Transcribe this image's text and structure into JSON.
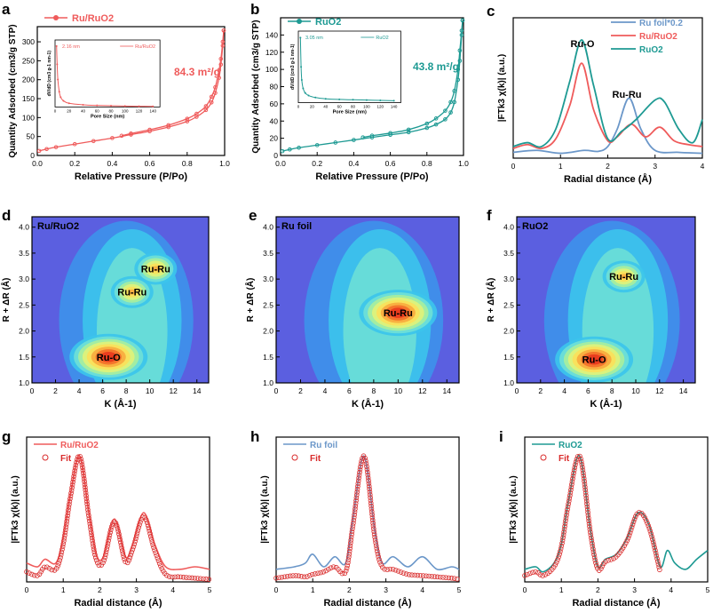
{
  "colors": {
    "red": "#ef5b5b",
    "teal": "#1e9a93",
    "blue": "#6b97c9",
    "fitred": "#d92b2b",
    "axis": "#000000"
  },
  "chart_data": [
    {
      "panel": "a",
      "type": "line",
      "title": "",
      "xlabel": "Relative Pressure (P/Po)",
      "ylabel": "Quantity Adsorbed (cm3/g STP)",
      "xlim": [
        0,
        1.0
      ],
      "ylim": [
        0,
        340
      ],
      "xticks": [
        "0.0",
        "0.2",
        "0.4",
        "0.6",
        "0.8",
        "1.0"
      ],
      "yticks": [
        "0",
        "50",
        "100",
        "150",
        "200",
        "250",
        "300"
      ],
      "legend": [
        "Ru/RuO2"
      ],
      "annotation": "84.3 m²/g",
      "series": [
        {
          "name": "adsorption",
          "x": [
            0.01,
            0.05,
            0.1,
            0.2,
            0.3,
            0.4,
            0.5,
            0.6,
            0.7,
            0.8,
            0.85,
            0.9,
            0.93,
            0.95,
            0.97,
            0.98,
            0.99,
            0.995
          ],
          "y": [
            12,
            17,
            22,
            30,
            38,
            46,
            55,
            64,
            75,
            90,
            102,
            120,
            140,
            165,
            205,
            240,
            290,
            330
          ]
        },
        {
          "name": "desorption",
          "x": [
            0.995,
            0.99,
            0.98,
            0.97,
            0.95,
            0.93,
            0.9,
            0.85,
            0.8,
            0.7,
            0.6,
            0.5,
            0.45
          ],
          "y": [
            330,
            300,
            255,
            225,
            180,
            155,
            130,
            110,
            97,
            80,
            68,
            58,
            52
          ]
        }
      ],
      "inset": {
        "xlabel": "Pore Size (nm)",
        "ylabel": "dV/dD (cm3 g-1 nm-1)",
        "xlim": [
          0,
          150
        ],
        "xticks": [
          "0",
          "20",
          "40",
          "60",
          "80",
          "100",
          "120",
          "140"
        ],
        "legend": "Ru/RuO2",
        "annotation": "2.16 nm",
        "x": [
          2.16,
          3,
          4,
          6,
          8,
          12,
          20,
          40,
          60,
          80,
          100,
          120,
          140
        ],
        "y": [
          1.0,
          0.7,
          0.45,
          0.25,
          0.16,
          0.1,
          0.06,
          0.035,
          0.025,
          0.02,
          0.015,
          0.012,
          0.01
        ]
      }
    },
    {
      "panel": "b",
      "type": "line",
      "title": "",
      "xlabel": "Relative Pressure (P/Po)",
      "ylabel": "Quantity Adsorbed (cm3/g STP)",
      "xlim": [
        0,
        1.0
      ],
      "ylim": [
        0,
        160
      ],
      "xticks": [
        "0.0",
        "0.2",
        "0.4",
        "0.6",
        "0.8",
        "1.0"
      ],
      "yticks": [
        "0",
        "20",
        "40",
        "60",
        "80",
        "100",
        "120",
        "140"
      ],
      "legend": [
        "RuO2"
      ],
      "annotation": "43.8 m²/g",
      "series": [
        {
          "name": "adsorption",
          "x": [
            0.01,
            0.05,
            0.1,
            0.2,
            0.3,
            0.4,
            0.5,
            0.6,
            0.7,
            0.8,
            0.85,
            0.9,
            0.93,
            0.95,
            0.97,
            0.98,
            0.99,
            0.995
          ],
          "y": [
            5,
            7,
            9,
            12,
            15,
            18,
            21,
            24,
            27,
            32,
            36,
            42,
            50,
            62,
            88,
            110,
            140,
            157
          ]
        },
        {
          "name": "desorption",
          "x": [
            0.995,
            0.99,
            0.98,
            0.97,
            0.95,
            0.93,
            0.9,
            0.85,
            0.8,
            0.7,
            0.6,
            0.5,
            0.45
          ],
          "y": [
            157,
            145,
            122,
            100,
            75,
            62,
            52,
            43,
            37,
            30,
            26,
            23,
            21
          ]
        }
      ],
      "inset": {
        "xlabel": "Pore Size (nm)",
        "ylabel": "dV/dD (cm3 g-1 nm-1)",
        "xlim": [
          0,
          150
        ],
        "xticks": [
          "0",
          "20",
          "40",
          "60",
          "80",
          "100",
          "120",
          "140"
        ],
        "legend": "RuO2",
        "annotation": "3.05 nm",
        "x": [
          3.05,
          4,
          5,
          7,
          10,
          15,
          25,
          40,
          60,
          80,
          100,
          120,
          140
        ],
        "y": [
          1.0,
          0.55,
          0.35,
          0.22,
          0.15,
          0.11,
          0.08,
          0.06,
          0.05,
          0.045,
          0.04,
          0.035,
          0.03
        ]
      }
    },
    {
      "panel": "c",
      "type": "line",
      "title": "",
      "xlabel": "Radial distance (Å)",
      "ylabel": "|FTk3 χ(k)| (a.u.)",
      "xlim": [
        0,
        4
      ],
      "xticks": [
        "0",
        "1",
        "2",
        "3",
        "4"
      ],
      "legend": [
        "Ru foil*0.2",
        "Ru/RuO2",
        "RuO2"
      ],
      "annotations": [
        "Ru-O",
        "Ru-Ru"
      ],
      "series": [
        {
          "name": "Ru foil*0.2",
          "color": "blue",
          "x": [
            0,
            0.5,
            1,
            1.5,
            1.8,
            2.0,
            2.2,
            2.45,
            2.7,
            3,
            3.5,
            4
          ],
          "y": [
            0.06,
            0.08,
            0.05,
            0.08,
            0.07,
            0.12,
            0.3,
            0.62,
            0.3,
            0.08,
            0.06,
            0.05
          ]
        },
        {
          "name": "Ru/RuO2",
          "color": "red",
          "x": [
            0,
            0.3,
            0.6,
            0.9,
            1.2,
            1.45,
            1.7,
            2.0,
            2.2,
            2.5,
            2.8,
            3.1,
            3.4,
            3.7,
            4
          ],
          "y": [
            0.1,
            0.14,
            0.1,
            0.2,
            0.55,
            0.98,
            0.5,
            0.18,
            0.22,
            0.35,
            0.22,
            0.32,
            0.18,
            0.14,
            0.12
          ]
        },
        {
          "name": "RuO2",
          "color": "teal",
          "x": [
            0,
            0.3,
            0.6,
            0.9,
            1.2,
            1.45,
            1.7,
            2.0,
            2.3,
            2.6,
            3.0,
            3.2,
            3.5,
            3.8,
            4
          ],
          "y": [
            0.12,
            0.16,
            0.12,
            0.3,
            0.8,
            1.22,
            0.75,
            0.2,
            0.28,
            0.4,
            0.6,
            0.58,
            0.3,
            0.16,
            0.4
          ]
        }
      ]
    },
    {
      "panel": "d",
      "type": "heatmap",
      "label": "Ru/RuO2",
      "xlabel": "K (Å-1)",
      "ylabel": "R + ΔR (Å)",
      "xlim": [
        0,
        15
      ],
      "ylim": [
        1.0,
        4.2
      ],
      "xticks": [
        "0",
        "2",
        "4",
        "6",
        "8",
        "10",
        "12",
        "14"
      ],
      "yticks": [
        "1.0",
        "1.5",
        "2.0",
        "2.5",
        "3.0",
        "3.5",
        "4.0"
      ],
      "peaks": [
        {
          "label": "Ru-O",
          "k": 6.5,
          "r": 1.5
        },
        {
          "label": "Ru-Ru",
          "k": 8.5,
          "r": 2.75
        },
        {
          "label": "Ru-Ru",
          "k": 10.5,
          "r": 3.2
        }
      ]
    },
    {
      "panel": "e",
      "type": "heatmap",
      "label": "Ru foil",
      "xlabel": "K (Å-1)",
      "ylabel": "R + ΔR (Å)",
      "xlim": [
        0,
        15
      ],
      "ylim": [
        1.0,
        4.2
      ],
      "xticks": [
        "0",
        "2",
        "4",
        "6",
        "8",
        "10",
        "12",
        "14"
      ],
      "yticks": [
        "1.0",
        "1.5",
        "2.0",
        "2.5",
        "3.0",
        "3.5",
        "4.0"
      ],
      "peaks": [
        {
          "label": "Ru-Ru",
          "k": 10.0,
          "r": 2.35
        }
      ]
    },
    {
      "panel": "f",
      "type": "heatmap",
      "label": "RuO2",
      "xlabel": "K (Å-1)",
      "ylabel": "R + ΔR (Å)",
      "xlim": [
        0,
        15
      ],
      "ylim": [
        1.0,
        4.2
      ],
      "xticks": [
        "0",
        "2",
        "4",
        "6",
        "8",
        "10",
        "12",
        "14"
      ],
      "yticks": [
        "1.0",
        "1.5",
        "2.0",
        "2.5",
        "3.0",
        "3.5",
        "4.0"
      ],
      "peaks": [
        {
          "label": "Ru-O",
          "k": 6.5,
          "r": 1.45
        },
        {
          "label": "Ru-Ru",
          "k": 9.0,
          "r": 3.05
        }
      ]
    },
    {
      "panel": "g",
      "type": "line",
      "xlabel": "Radial distance (Å)",
      "ylabel": "|FTk3 χ(k)| (a.u.)",
      "xlim": [
        0,
        5
      ],
      "xticks": [
        "0",
        "1",
        "2",
        "3",
        "4",
        "5"
      ],
      "legend": [
        "Ru/RuO2",
        "Fit"
      ],
      "series": [
        {
          "name": "Ru/RuO2",
          "color": "red",
          "x": [
            0,
            0.3,
            0.5,
            0.8,
            1.0,
            1.2,
            1.45,
            1.7,
            1.9,
            2.1,
            2.4,
            2.7,
            2.9,
            3.2,
            3.5,
            3.8,
            4.2,
            4.6,
            5
          ],
          "y": [
            0.15,
            0.12,
            0.18,
            0.15,
            0.35,
            0.7,
            1.0,
            0.55,
            0.22,
            0.2,
            0.5,
            0.2,
            0.3,
            0.55,
            0.3,
            0.12,
            0.1,
            0.12,
            0.1
          ]
        },
        {
          "name": "Fit",
          "color": "fitred",
          "x": [
            0,
            0.3,
            0.5,
            0.8,
            1.0,
            1.2,
            1.45,
            1.7,
            1.9,
            2.1,
            2.4,
            2.7,
            2.9,
            3.2,
            3.5,
            3.8,
            4.2,
            4.6,
            5
          ],
          "y": [
            0.08,
            0.05,
            0.12,
            0.1,
            0.3,
            0.68,
            1.0,
            0.52,
            0.18,
            0.16,
            0.48,
            0.16,
            0.26,
            0.52,
            0.25,
            0.06,
            0.04,
            0.03,
            0.02
          ]
        }
      ]
    },
    {
      "panel": "h",
      "type": "line",
      "xlabel": "Radial distance (Å)",
      "ylabel": "|FTk3 χ(k)| (a.u.)",
      "xlim": [
        0,
        5
      ],
      "xticks": [
        "0",
        "1",
        "2",
        "3",
        "4",
        "5"
      ],
      "legend": [
        "Ru foil",
        "Fit"
      ],
      "series": [
        {
          "name": "Ru foil",
          "color": "blue",
          "x": [
            0,
            0.5,
            0.8,
            1.0,
            1.3,
            1.6,
            1.9,
            2.1,
            2.4,
            2.7,
            2.9,
            3.2,
            3.6,
            4.0,
            4.4,
            4.8,
            5
          ],
          "y": [
            0.1,
            0.12,
            0.15,
            0.22,
            0.12,
            0.2,
            0.15,
            0.5,
            1.0,
            0.4,
            0.15,
            0.2,
            0.12,
            0.2,
            0.1,
            0.12,
            0.1
          ]
        },
        {
          "name": "Fit",
          "color": "fitred",
          "x": [
            0,
            0.5,
            0.8,
            1.0,
            1.3,
            1.6,
            1.9,
            2.1,
            2.4,
            2.7,
            2.9,
            3.2,
            3.6,
            4.0,
            4.4,
            4.8,
            5
          ],
          "y": [
            0.03,
            0.05,
            0.04,
            0.06,
            0.08,
            0.12,
            0.08,
            0.45,
            1.0,
            0.35,
            0.12,
            0.1,
            0.06,
            0.05,
            0.04,
            0.03,
            0.02
          ]
        }
      ]
    },
    {
      "panel": "i",
      "type": "line",
      "xlabel": "Radial distance (Å)",
      "ylabel": "|FTk3 χ(k)| (a.u.)",
      "xlim": [
        0,
        5
      ],
      "xticks": [
        "0",
        "1",
        "2",
        "3",
        "4",
        "5"
      ],
      "legend": [
        "RuO2",
        "Fit"
      ],
      "series": [
        {
          "name": "RuO2",
          "color": "teal",
          "x": [
            0,
            0.3,
            0.5,
            0.8,
            1.0,
            1.2,
            1.5,
            1.8,
            2.0,
            2.2,
            2.5,
            2.8,
            3.1,
            3.4,
            3.7,
            3.9,
            4.1,
            4.4,
            4.7,
            5
          ],
          "y": [
            0.1,
            0.12,
            0.08,
            0.15,
            0.3,
            0.65,
            1.0,
            0.4,
            0.12,
            0.18,
            0.22,
            0.35,
            0.55,
            0.45,
            0.12,
            0.25,
            0.15,
            0.1,
            0.18,
            0.25
          ]
        },
        {
          "name": "Fit",
          "color": "fitred",
          "x": [
            0,
            0.3,
            0.5,
            0.8,
            1.0,
            1.2,
            1.5,
            1.8,
            2.0,
            2.2,
            2.5,
            2.8,
            3.1,
            3.4,
            3.7
          ],
          "y": [
            0.05,
            0.08,
            0.05,
            0.12,
            0.28,
            0.63,
            1.0,
            0.38,
            0.1,
            0.16,
            0.2,
            0.33,
            0.55,
            0.43,
            0.08
          ]
        }
      ]
    }
  ]
}
